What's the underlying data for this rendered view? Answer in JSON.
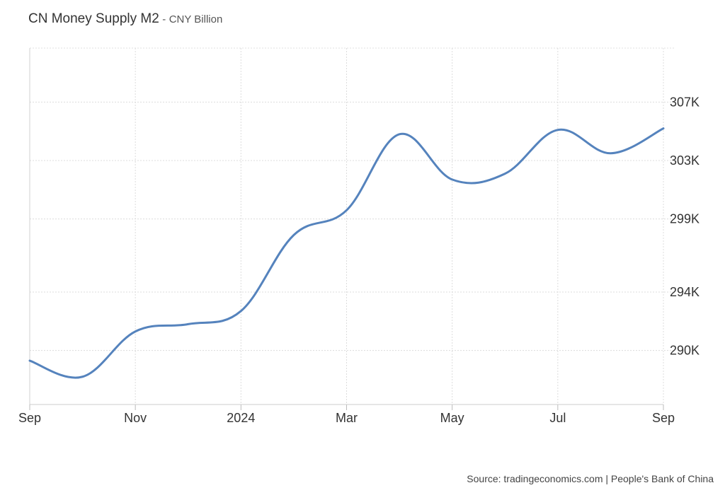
{
  "chart_data": {
    "type": "line",
    "title": "CN Money Supply M2",
    "title_separator": "-",
    "unit": "CNY Billion",
    "xlabel": "",
    "ylabel": "",
    "x_tick_labels": [
      "Sep",
      "Nov",
      "2024",
      "Mar",
      "May",
      "Jul",
      "Sep"
    ],
    "y_tick_labels": [
      "290K",
      "294K",
      "299K",
      "303K",
      "307K"
    ],
    "y_tick_values": [
      290000,
      294000,
      299000,
      303000,
      307000
    ],
    "ylim": [
      286300,
      310700
    ],
    "x": [
      "2023-08",
      "2023-09",
      "2023-10",
      "2023-11",
      "2023-12",
      "2024-01",
      "2024-02",
      "2024-03",
      "2024-04",
      "2024-05",
      "2024-06",
      "2024-07",
      "2024-08"
    ],
    "series": [
      {
        "values": [
          289300,
          288200,
          291300,
          291800,
          292700,
          297900,
          299600,
          304800,
          301700,
          302100,
          305100,
          303500,
          305200
        ],
        "color": "#5583bd"
      }
    ],
    "grid": true,
    "legend": "none"
  },
  "source": "Source: tradingeconomics.com | People's Bank of China"
}
